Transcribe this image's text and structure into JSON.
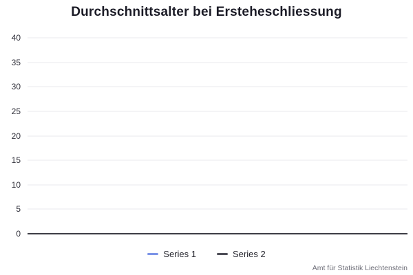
{
  "chart": {
    "title": "Durchschnittsalter bei Ersteheschliessung",
    "source": "Amt für Statistik Liechtenstein",
    "legend": [
      {
        "label": "Series 1",
        "color": "#7d95e8"
      },
      {
        "label": "Series 2",
        "color": "#4f4f58"
      }
    ],
    "colors": {
      "background": "#ffffff",
      "title_text": "#1b1b26",
      "tick_text": "#32323c",
      "gridline": "#e9e9ec",
      "axis_line": "#3d3d46",
      "legend_text": "#26262e",
      "source_text": "#6e6e78"
    }
  },
  "chart_data": {
    "type": "line",
    "title": "Durchschnittsalter bei Ersteheschliessung",
    "x": [],
    "series": [
      {
        "name": "Series 1",
        "color": "#7d95e8",
        "values": []
      },
      {
        "name": "Series 2",
        "color": "#4f4f58",
        "values": []
      }
    ],
    "xlabel": "",
    "ylabel": "",
    "ylim": [
      0,
      40
    ],
    "yticks": [
      0,
      5,
      10,
      15,
      20,
      25,
      30,
      35,
      40
    ],
    "grid": true,
    "legend_position": "bottom",
    "source": "Amt für Statistik Liechtenstein"
  }
}
